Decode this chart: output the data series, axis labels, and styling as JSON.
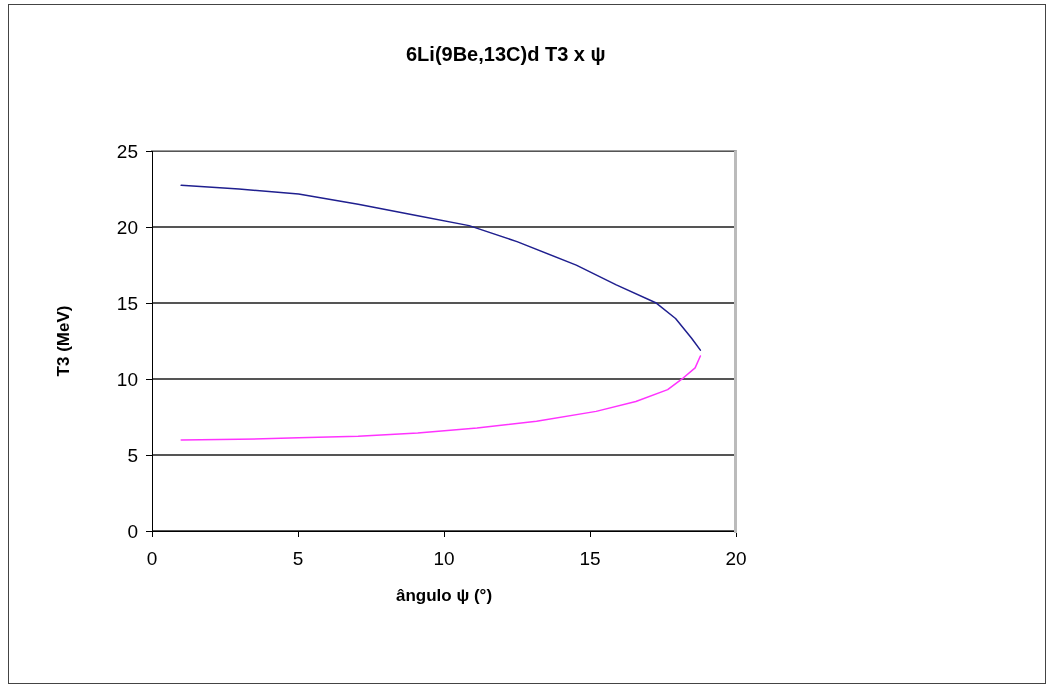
{
  "chart_data": {
    "type": "line",
    "title": "6Li(9Be,13C)d T3 x ψ",
    "xlabel": "ângulo ψ (°)",
    "ylabel": "T3 (MeV)",
    "xlim": [
      0,
      20
    ],
    "xticks": [
      0,
      5,
      10,
      15,
      20
    ],
    "ylim": [
      0,
      25
    ],
    "yticks": [
      0,
      5,
      10,
      15,
      20,
      25
    ],
    "grid": "y",
    "marker": "none",
    "line_style": "solid",
    "series": [
      {
        "color": "#1f1f8f",
        "x": [
          1.0,
          2.98,
          5.02,
          7.06,
          9.1,
          10.86,
          12.5,
          14.53,
          15.9,
          17.25,
          17.93,
          18.48,
          18.78
        ],
        "values": [
          22.74,
          22.5,
          22.17,
          21.5,
          20.74,
          20.09,
          19.04,
          17.49,
          16.19,
          15.02,
          13.98,
          12.68,
          11.9
        ]
      },
      {
        "color": "#ff33ff",
        "x": [
          18.78,
          18.6,
          18.2,
          17.66,
          16.57,
          15.21,
          13.17,
          11.13,
          9.1,
          7.06,
          5.02,
          2.98,
          1.0
        ],
        "values": [
          11.51,
          10.73,
          10.08,
          9.3,
          8.52,
          7.87,
          7.22,
          6.78,
          6.44,
          6.24,
          6.13,
          6.03,
          5.98
        ]
      }
    ]
  }
}
